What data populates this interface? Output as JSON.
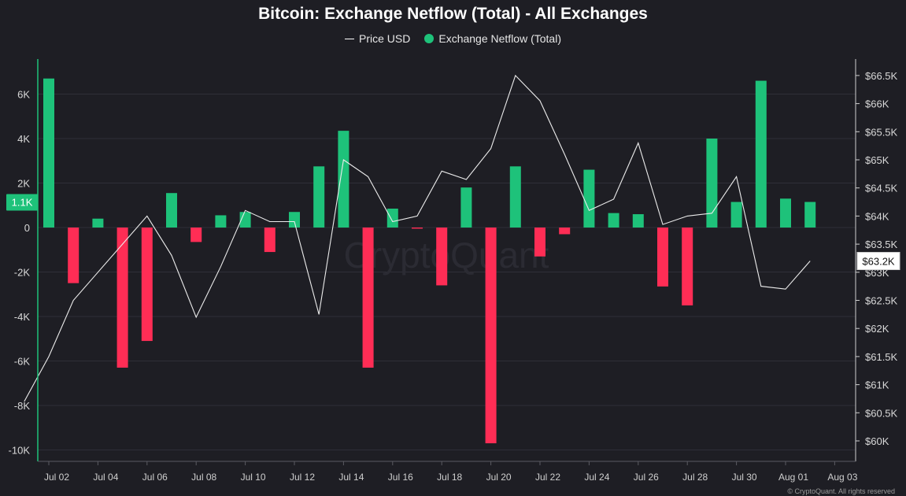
{
  "chart_data": {
    "type": "bar",
    "title": "Bitcoin: Exchange Netflow (Total) - All Exchanges",
    "series": [
      {
        "name": "Price USD",
        "type": "line",
        "axis": "right",
        "color": "#ffffff"
      },
      {
        "name": "Exchange Netflow (Total)",
        "type": "bar",
        "axis": "left",
        "color_positive": "#1ec27a",
        "color_negative": "#ff2d55"
      }
    ],
    "x": [
      "2024-07-02",
      "2024-07-03",
      "2024-07-04",
      "2024-07-05",
      "2024-07-06",
      "2024-07-07",
      "2024-07-08",
      "2024-07-09",
      "2024-07-10",
      "2024-07-11",
      "2024-07-12",
      "2024-07-13",
      "2024-07-14",
      "2024-07-15",
      "2024-07-16",
      "2024-07-17",
      "2024-07-18",
      "2024-07-19",
      "2024-07-20",
      "2024-07-21",
      "2024-07-22",
      "2024-07-23",
      "2024-07-24",
      "2024-07-25",
      "2024-07-26",
      "2024-07-27",
      "2024-07-28",
      "2024-07-29",
      "2024-07-30",
      "2024-07-31",
      "2024-08-01",
      "2024-08-02"
    ],
    "netflow": [
      6700,
      -2500,
      400,
      -6300,
      -5100,
      1550,
      -650,
      550,
      700,
      -1100,
      700,
      2750,
      4350,
      -6300,
      850,
      -50,
      -2600,
      1800,
      -9700,
      2750,
      -1300,
      -300,
      2600,
      650,
      600,
      -2650,
      -3500,
      4000,
      1150,
      6600,
      1300,
      1150
    ],
    "price": [
      60700,
      61500,
      62500,
      63000,
      63500,
      64000,
      63300,
      62200,
      63100,
      64100,
      63900,
      63900,
      62250,
      65000,
      64700,
      63900,
      64000,
      64800,
      64650,
      65200,
      66500,
      66050,
      65100,
      64100,
      64300,
      65300,
      63850,
      64000,
      64050,
      64700,
      62750,
      62700,
      63200
    ],
    "price_x": [
      "2024-07-01",
      "2024-07-02",
      "2024-07-03",
      "2024-07-04",
      "2024-07-05",
      "2024-07-06",
      "2024-07-07",
      "2024-07-08",
      "2024-07-09",
      "2024-07-10",
      "2024-07-11",
      "2024-07-12",
      "2024-07-13",
      "2024-07-14",
      "2024-07-15",
      "2024-07-16",
      "2024-07-17",
      "2024-07-18",
      "2024-07-19",
      "2024-07-20",
      "2024-07-21",
      "2024-07-22",
      "2024-07-23",
      "2024-07-24",
      "2024-07-25",
      "2024-07-26",
      "2024-07-27",
      "2024-07-28",
      "2024-07-29",
      "2024-07-30",
      "2024-07-31",
      "2024-08-01",
      "2024-08-02"
    ],
    "x_tick_labels": [
      "Jul 02",
      "Jul 04",
      "Jul 06",
      "Jul 08",
      "Jul 10",
      "Jul 12",
      "Jul 14",
      "Jul 16",
      "Jul 18",
      "Jul 20",
      "Jul 22",
      "Jul 24",
      "Jul 26",
      "Jul 28",
      "Jul 30",
      "Aug 01",
      "Aug 03"
    ],
    "left_axis": {
      "ticks": [
        6000,
        4000,
        2000,
        0,
        -2000,
        -4000,
        -6000,
        -8000,
        -10000
      ],
      "tick_labels": [
        "6K",
        "4K",
        "2K",
        "0",
        "-2K",
        "-4K",
        "-6K",
        "-8K",
        "-10K"
      ],
      "ylim": [
        -10000,
        6000
      ]
    },
    "right_axis": {
      "ticks": [
        66500,
        66000,
        65500,
        65000,
        64500,
        64000,
        63500,
        63000,
        62500,
        62000,
        61500,
        61000,
        60500,
        60000
      ],
      "tick_labels": [
        "$66.5K",
        "$66K",
        "$65.5K",
        "$65K",
        "$64.5K",
        "$64K",
        "$63.5K",
        "$63K",
        "$62.5K",
        "$62K",
        "$61.5K",
        "$61K",
        "$60.5K",
        "$60K"
      ],
      "ylim": [
        60000,
        66500
      ]
    },
    "current_left_label": "1.1K",
    "current_price_label": "$63.2K",
    "grid": true,
    "legend_position": "top-center",
    "watermark": "CryptoQuant"
  },
  "legend": {
    "price_label": "Price USD",
    "netflow_label": "Exchange Netflow (Total)"
  },
  "footer": {
    "copyright": "© CryptoQuant. All rights reserved"
  },
  "colors": {
    "background": "#1e1e24",
    "positive": "#1ec27a",
    "negative": "#ff2d55",
    "badge": "#1ec27a"
  }
}
